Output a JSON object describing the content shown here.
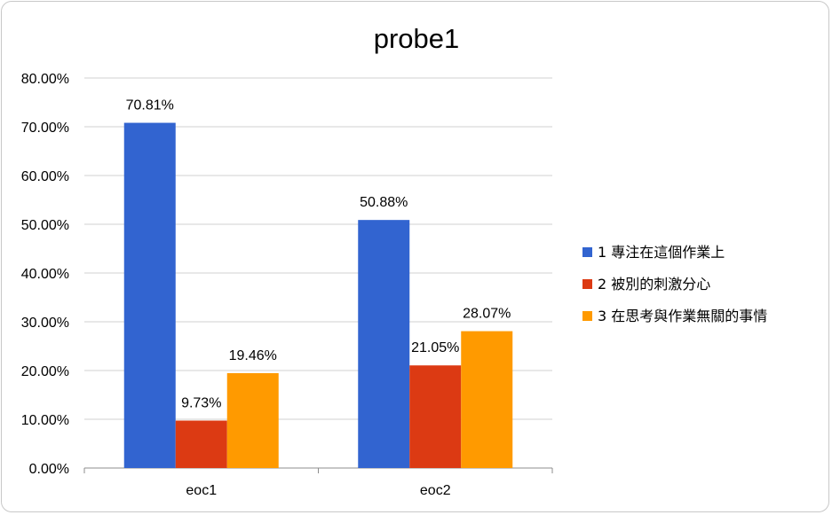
{
  "chart_data": {
    "type": "bar",
    "title": "probe1",
    "xlabel": "",
    "ylabel": "",
    "categories": [
      "eoc1",
      "eoc2"
    ],
    "series": [
      {
        "name": "1 專注在這個作業上",
        "color": "#3264d0",
        "values": [
          70.81,
          50.88
        ],
        "labels": [
          "70.81%",
          "50.88%"
        ]
      },
      {
        "name": "2 被別的刺激分心",
        "color": "#dc3a13",
        "values": [
          9.73,
          21.05
        ],
        "labels": [
          "9.73%",
          "21.05%"
        ]
      },
      {
        "name": "3 在思考與作業無關的事情",
        "color": "#ff9a00",
        "values": [
          19.46,
          28.07
        ],
        "labels": [
          "19.46%",
          "28.07%"
        ]
      }
    ],
    "ylim": [
      0,
      80
    ],
    "yticks": [
      "0.00%",
      "10.00%",
      "20.00%",
      "30.00%",
      "40.00%",
      "50.00%",
      "60.00%",
      "70.00%",
      "80.00%"
    ],
    "grid": true,
    "legend": "right"
  }
}
